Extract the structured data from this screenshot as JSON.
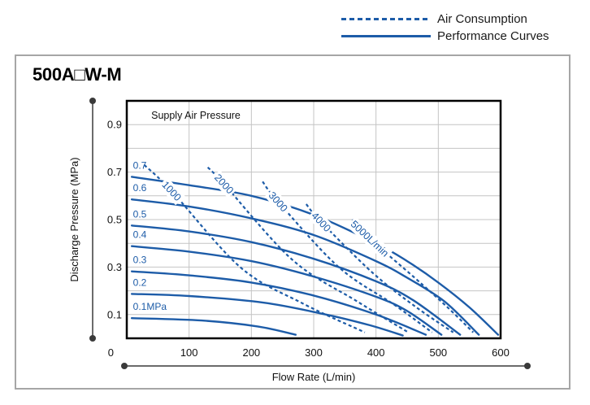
{
  "legend": {
    "items": [
      {
        "label": "Air Consumption",
        "style": "dashed"
      },
      {
        "label": "Performance Curves",
        "style": "solid"
      }
    ]
  },
  "panel": {
    "title": "500A□W-M"
  },
  "chart_data": {
    "type": "line",
    "title": "500A□W-M",
    "annotation": "Supply Air Pressure",
    "xlabel": "Flow Rate (L/min)",
    "ylabel": "Discharge Pressure (MPa)",
    "xlim": [
      0,
      600
    ],
    "ylim": [
      0,
      1.0
    ],
    "x_ticks": [
      0,
      100,
      200,
      300,
      400,
      500,
      600
    ],
    "y_ticks": [
      0.1,
      0.3,
      0.5,
      0.7,
      0.9
    ],
    "grid": {
      "x_step": 100,
      "y_step": 0.1,
      "on": true
    },
    "legend_position": "top-right-outside",
    "colors": {
      "line": "#1d5ca8",
      "grid": "#c4c4c4",
      "border": "#000000",
      "dim": "#3a3a3a",
      "text": "#111111"
    },
    "series": [
      {
        "name": "0.7",
        "label": "0.7",
        "points": [
          [
            8,
            0.68
          ],
          [
            100,
            0.645
          ],
          [
            200,
            0.6
          ],
          [
            300,
            0.52
          ],
          [
            400,
            0.4
          ],
          [
            450,
            0.325
          ],
          [
            500,
            0.235
          ],
          [
            550,
            0.13
          ],
          [
            596,
            0.015
          ]
        ]
      },
      {
        "name": "0.6",
        "label": "0.6",
        "points": [
          [
            8,
            0.585
          ],
          [
            100,
            0.555
          ],
          [
            200,
            0.505
          ],
          [
            300,
            0.435
          ],
          [
            400,
            0.325
          ],
          [
            450,
            0.255
          ],
          [
            510,
            0.155
          ],
          [
            565,
            0.015
          ]
        ]
      },
      {
        "name": "0.5",
        "label": "0.5",
        "points": [
          [
            8,
            0.475
          ],
          [
            100,
            0.45
          ],
          [
            200,
            0.405
          ],
          [
            300,
            0.335
          ],
          [
            400,
            0.24
          ],
          [
            460,
            0.16
          ],
          [
            535,
            0.015
          ]
        ]
      },
      {
        "name": "0.4",
        "label": "0.4",
        "points": [
          [
            8,
            0.388
          ],
          [
            100,
            0.365
          ],
          [
            200,
            0.325
          ],
          [
            300,
            0.26
          ],
          [
            400,
            0.175
          ],
          [
            450,
            0.115
          ],
          [
            505,
            0.015
          ]
        ]
      },
      {
        "name": "0.3",
        "label": "0.3",
        "points": [
          [
            8,
            0.282
          ],
          [
            100,
            0.265
          ],
          [
            200,
            0.235
          ],
          [
            300,
            0.18
          ],
          [
            400,
            0.1
          ],
          [
            480,
            0.015
          ]
        ]
      },
      {
        "name": "0.2",
        "label": "0.2",
        "points": [
          [
            8,
            0.187
          ],
          [
            100,
            0.178
          ],
          [
            220,
            0.15
          ],
          [
            320,
            0.1
          ],
          [
            390,
            0.055
          ],
          [
            443,
            0.012
          ]
        ]
      },
      {
        "name": "0.1",
        "label": "0.1MPa",
        "points": [
          [
            8,
            0.085
          ],
          [
            120,
            0.075
          ],
          [
            210,
            0.05
          ],
          [
            271,
            0.015
          ]
        ]
      }
    ],
    "air_consumption": [
      {
        "name": "1000",
        "label": "1000",
        "label_index": 1,
        "points": [
          [
            28,
            0.73
          ],
          [
            72,
            0.62
          ],
          [
            182,
            0.3
          ],
          [
            280,
            0.15
          ],
          [
            382,
            0.025
          ]
        ]
      },
      {
        "name": "2000",
        "label": "2000",
        "label_index": 1,
        "points": [
          [
            130,
            0.72
          ],
          [
            156,
            0.65
          ],
          [
            266,
            0.33
          ],
          [
            370,
            0.155
          ],
          [
            452,
            0.025
          ]
        ]
      },
      {
        "name": "3000",
        "label": "3000",
        "label_index": 1,
        "points": [
          [
            218,
            0.66
          ],
          [
            243,
            0.575
          ],
          [
            340,
            0.3
          ],
          [
            430,
            0.14
          ],
          [
            490,
            0.025
          ]
        ]
      },
      {
        "name": "4000",
        "label": "4000",
        "label_index": 1,
        "points": [
          [
            288,
            0.565
          ],
          [
            312,
            0.49
          ],
          [
            395,
            0.275
          ],
          [
            465,
            0.13
          ],
          [
            524,
            0.025
          ]
        ]
      },
      {
        "name": "5000",
        "label": "5000L/min",
        "label_index": 1,
        "points": [
          [
            362,
            0.5
          ],
          [
            390,
            0.42
          ],
          [
            462,
            0.255
          ],
          [
            515,
            0.13
          ],
          [
            556,
            0.025
          ]
        ]
      }
    ]
  }
}
